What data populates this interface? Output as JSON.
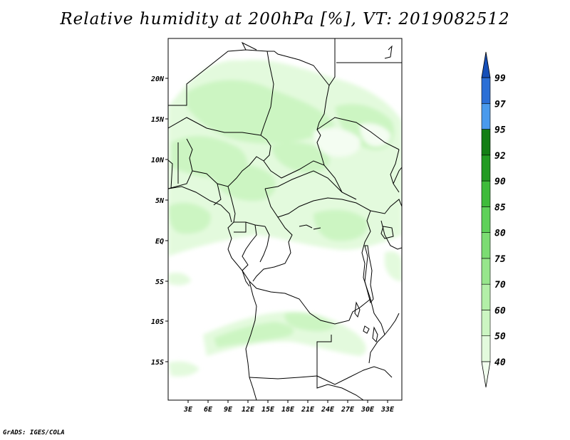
{
  "title": "Relative humidity at 200hPa [%], VT: 2019082512",
  "credit": "GrADS: IGES/COLA",
  "map": {
    "lon_range": [
      0,
      35
    ],
    "lat_range": [
      -20,
      25
    ],
    "x_ticks": [
      "3E",
      "6E",
      "9E",
      "12E",
      "15E",
      "18E",
      "21E",
      "24E",
      "27E",
      "30E",
      "33E"
    ],
    "y_ticks": [
      "20N",
      "15N",
      "10N",
      "5N",
      "EQ",
      "5S",
      "10S",
      "15S"
    ]
  },
  "colorbar": {
    "levels": [
      "40",
      "50",
      "60",
      "70",
      "75",
      "80",
      "85",
      "90",
      "92",
      "95",
      "97",
      "99"
    ],
    "colors": [
      "#f1fdee",
      "#e3fadd",
      "#ccf5c2",
      "#b3efa8",
      "#97e68c",
      "#7cdc73",
      "#5fd15a",
      "#3fbb3b",
      "#229b22",
      "#137e14",
      "#4a9aec",
      "#2b6fd6",
      "#164fb8"
    ]
  }
}
